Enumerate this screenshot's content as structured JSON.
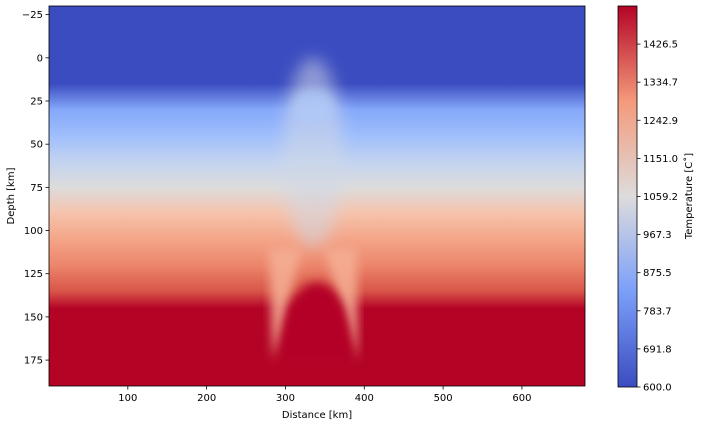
{
  "chart_data": {
    "type": "heatmap",
    "title": "",
    "xlabel": "Distance [km]",
    "ylabel": "Depth [km]",
    "xlim": [
      0,
      680
    ],
    "ylim": [
      190,
      -30
    ],
    "y_inverted": true,
    "xticks": [
      100,
      200,
      300,
      400,
      500,
      600
    ],
    "xtick_labels": [
      "100",
      "200",
      "300",
      "400",
      "500",
      "600"
    ],
    "yticks": [
      -25,
      0,
      25,
      50,
      75,
      100,
      125,
      150,
      175
    ],
    "ytick_labels": [
      "−25",
      "0",
      "25",
      "50",
      "75",
      "100",
      "125",
      "150",
      "175"
    ],
    "colormap": "coolwarm",
    "colorbar": {
      "label": "Temperature [C˚]",
      "range": [
        600.0,
        1518.3
      ],
      "ticks": [
        600.0,
        691.8,
        783.7,
        875.5,
        967.3,
        1059.2,
        1151.0,
        1242.9,
        1334.7,
        1426.5
      ],
      "tick_labels": [
        "600.0",
        "691.8",
        "783.7",
        "875.5",
        "967.3",
        "1059.2",
        "1151.0",
        "1242.9",
        "1334.7",
        "1426.5"
      ]
    },
    "profile": [
      {
        "depth": -30,
        "temperature": 600
      },
      {
        "depth": 15,
        "temperature": 600
      },
      {
        "depth": 30,
        "temperature": 810
      },
      {
        "depth": 45,
        "temperature": 880
      },
      {
        "depth": 60,
        "temperature": 980
      },
      {
        "depth": 75,
        "temperature": 1060
      },
      {
        "depth": 90,
        "temperature": 1180
      },
      {
        "depth": 105,
        "temperature": 1260
      },
      {
        "depth": 120,
        "temperature": 1330
      },
      {
        "depth": 135,
        "temperature": 1420
      },
      {
        "depth": 145,
        "temperature": 1518
      },
      {
        "depth": 190,
        "temperature": 1518
      }
    ],
    "features": {
      "upwelling_center_x": 335,
      "hot_dome_top_depth": 130,
      "hot_dome_x_range": [
        285,
        395
      ],
      "cool_plumes": [
        {
          "x_top": 300,
          "x_bottom": 285,
          "depth_top": 130,
          "depth_bottom": 175
        },
        {
          "x_top": 370,
          "x_bottom": 390,
          "depth_top": 130,
          "depth_bottom": 175
        }
      ]
    },
    "colors": {
      "cold": "#3b4cc0",
      "mid": "#dddcdc",
      "hot": "#b40426"
    }
  }
}
